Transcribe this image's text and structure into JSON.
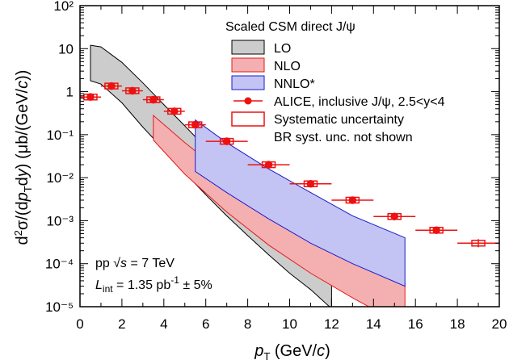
{
  "chart_data": {
    "type": "scatter",
    "xlabel": "p_T (GeV/c)",
    "ylabel": "d²σ/(dp_T dy) (μb/(GeV/c))",
    "xlim": [
      0,
      20
    ],
    "ylim": [
      1e-05,
      100.0
    ],
    "yscale": "log",
    "grid": false,
    "legend_position": "top-right",
    "x_ticks": [
      "0",
      "2",
      "4",
      "6",
      "8",
      "10",
      "12",
      "14",
      "16",
      "18",
      "20"
    ],
    "y_ticks": [
      "10⁻⁵",
      "10⁻⁴",
      "10⁻³",
      "10⁻²",
      "10⁻¹",
      "1",
      "10",
      "10²"
    ],
    "legend_title": "Scaled CSM direct J/ψ",
    "colors": {
      "lo_fill": "#cccccc",
      "lo_edge": "#000000",
      "nlo_fill": "#f4b0b0",
      "nlo_edge": "#e41a1c",
      "nnlo_fill": "#c4c4f4",
      "nnlo_edge": "#1a1acc",
      "data": "#ee1111"
    },
    "series": [
      {
        "name": "LO",
        "kind": "band",
        "x": [
          0.5,
          1,
          2,
          3,
          4,
          5,
          6,
          7,
          8,
          9,
          10,
          11,
          12
        ],
        "upper": [
          12,
          11,
          4.8,
          1.6,
          0.5,
          0.16,
          0.05,
          0.016,
          0.0055,
          0.002,
          0.00075,
          0.0003,
          0.00012
        ],
        "lower": [
          1.8,
          1.5,
          0.55,
          0.15,
          0.045,
          0.013,
          0.004,
          0.0013,
          0.00045,
          0.00016,
          6e-05,
          2.5e-05,
          9e-06
        ]
      },
      {
        "name": "NLO",
        "kind": "band",
        "x": [
          3.5,
          5,
          7,
          9,
          11,
          13,
          15.5
        ],
        "upper": [
          0.28,
          0.065,
          0.011,
          0.0024,
          0.0006,
          0.00018,
          3.5e-05
        ],
        "lower": [
          0.075,
          0.012,
          0.0016,
          0.00027,
          6e-05,
          1.6e-05,
          3.5e-06
        ]
      },
      {
        "name": "NNLO*",
        "kind": "band",
        "x": [
          5.5,
          7,
          9,
          11,
          13,
          15.5
        ],
        "upper": [
          0.22,
          0.065,
          0.016,
          0.0045,
          0.0013,
          0.0004
        ],
        "lower": [
          0.014,
          0.0045,
          0.0011,
          0.0003,
          0.0001,
          3e-05
        ]
      },
      {
        "name": "ALICE, inclusive J/ψ, 2.5<y<4",
        "kind": "points",
        "points": [
          {
            "x": 0.5,
            "y": 0.75,
            "xerr": 0.5
          },
          {
            "x": 1.5,
            "y": 1.35,
            "xerr": 0.5
          },
          {
            "x": 2.5,
            "y": 1.05,
            "xerr": 0.5
          },
          {
            "x": 3.5,
            "y": 0.65,
            "xerr": 0.5
          },
          {
            "x": 4.5,
            "y": 0.35,
            "xerr": 0.5
          },
          {
            "x": 5.5,
            "y": 0.17,
            "xerr": 0.5
          },
          {
            "x": 7,
            "y": 0.07,
            "xerr": 1
          },
          {
            "x": 9,
            "y": 0.02,
            "xerr": 1
          },
          {
            "x": 11,
            "y": 0.0072,
            "xerr": 1
          },
          {
            "x": 13,
            "y": 0.003,
            "xerr": 1
          },
          {
            "x": 15,
            "y": 0.00125,
            "xerr": 1
          },
          {
            "x": 17,
            "y": 0.0006,
            "xerr": 1
          },
          {
            "x": 19,
            "y": 0.0003,
            "xerr": 1,
            "style": "open"
          }
        ]
      }
    ],
    "legend_extra": [
      "Systematic uncertainty",
      "BR syst. unc. not shown"
    ],
    "annotations": [
      "pp √s = 7 TeV",
      "L_int = 1.35 pb⁻¹ ± 5%"
    ]
  }
}
